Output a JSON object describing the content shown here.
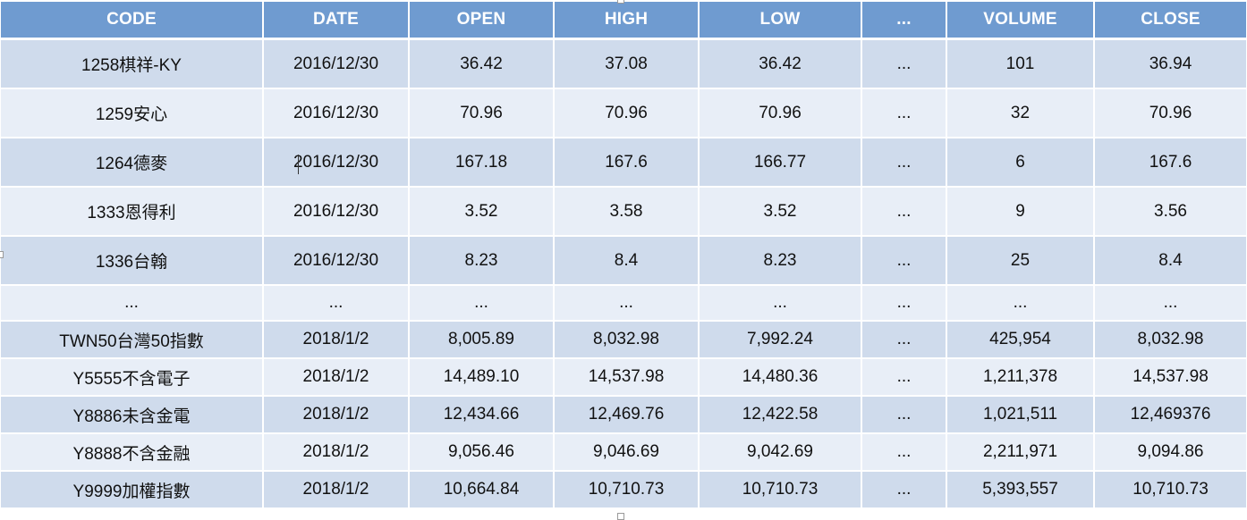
{
  "table": {
    "headers": [
      "CODE",
      "DATE",
      "OPEN",
      "HIGH",
      "LOW",
      "...",
      "VOLUME",
      "CLOSE"
    ],
    "rows": [
      [
        "1258棋祥-KY",
        "2016/12/30",
        "36.42",
        "37.08",
        "36.42",
        "...",
        "101",
        "36.94"
      ],
      [
        "1259安心",
        "2016/12/30",
        "70.96",
        "70.96",
        "70.96",
        "...",
        "32",
        "70.96"
      ],
      [
        "1264德麥",
        "2016/12/30",
        "167.18",
        "167.6",
        "166.77",
        "...",
        "6",
        "167.6"
      ],
      [
        "1333恩得利",
        "2016/12/30",
        "3.52",
        "3.58",
        "3.52",
        "...",
        "9",
        "3.56"
      ],
      [
        "1336台翰",
        "2016/12/30",
        "8.23",
        "8.4",
        "8.23",
        "...",
        "25",
        "8.4"
      ],
      [
        "...",
        "...",
        "...",
        "...",
        "...",
        "...",
        "...",
        "..."
      ],
      [
        "TWN50台灣50指數",
        "2018/1/2",
        "8,005.89",
        "8,032.98",
        "7,992.24",
        "...",
        "425,954",
        "8,032.98"
      ],
      [
        "Y5555不含電子",
        "2018/1/2",
        "14,489.10",
        "14,537.98",
        "14,480.36",
        "...",
        "1,211,378",
        "14,537.98"
      ],
      [
        "Y8886未含金電",
        "2018/1/2",
        "12,434.66",
        "12,469.76",
        "12,422.58",
        "...",
        "1,021,511",
        "12,469376"
      ],
      [
        "Y8888不含金融",
        "2018/1/2",
        "9,056.46",
        "9,046.69",
        "9,042.69",
        "...",
        "2,211,971",
        "9,094.86"
      ],
      [
        "Y9999加權指數",
        "2018/1/2",
        "10,664.84",
        "10,710.73",
        "10,710.73",
        "...",
        "5,393,557",
        "10,710.73"
      ]
    ]
  },
  "colors": {
    "header_bg": "#6f9bd0",
    "row_odd_bg": "#cfdbec",
    "row_even_bg": "#e8eef7"
  }
}
